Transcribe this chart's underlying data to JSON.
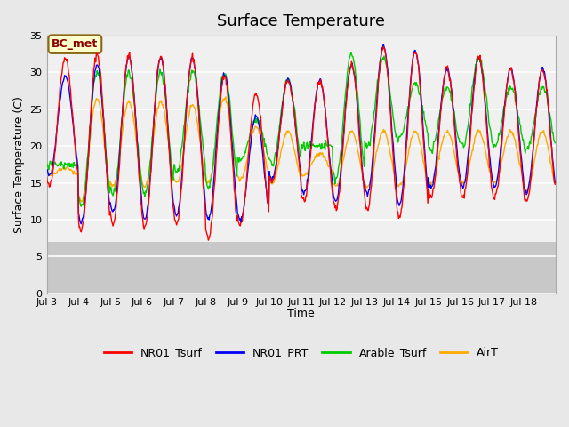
{
  "title": "Surface Temperature",
  "ylabel": "Surface Temperature (C)",
  "xlabel": "Time",
  "annotation": "BC_met",
  "ylim": [
    0,
    35
  ],
  "yticks": [
    0,
    5,
    10,
    15,
    20,
    25,
    30,
    35
  ],
  "legend_labels": [
    "NR01_Tsurf",
    "NR01_PRT",
    "Arable_Tsurf",
    "AirT"
  ],
  "line_colors": [
    "#ff0000",
    "#0000ff",
    "#00cc00",
    "#ffaa00"
  ],
  "xtick_labels": [
    "Jul 3",
    "Jul 4",
    "Jul 5",
    "Jul 6",
    "Jul 7",
    "Jul 8",
    "Jul 9",
    "Jul 10",
    "Jul 11",
    "Jul 12",
    "Jul 13",
    "Jul 14",
    "Jul 15",
    "Jul 16",
    "Jul 17",
    "Jul 18"
  ],
  "bg_color": "#e8e8e8",
  "plot_bg_color": "#f0f0f0",
  "grid_color": "#ffffff",
  "annotation_bg": "#ffffcc",
  "annotation_border": "#8B6914",
  "n_days": 16,
  "peak_NR01": [
    32.0,
    32.5,
    32.3,
    32.2,
    32.0,
    29.5,
    27.0,
    28.8,
    28.8,
    31.0,
    33.5,
    32.8,
    30.5,
    32.0,
    30.5,
    30.5
  ],
  "trough_NR01": [
    14.5,
    8.5,
    9.5,
    9.0,
    9.5,
    7.5,
    9.3,
    15.2,
    12.5,
    11.5,
    11.5,
    10.5,
    13.0,
    13.0,
    13.0,
    12.5
  ],
  "peak_PRT": [
    29.5,
    31.0,
    32.0,
    32.0,
    32.0,
    29.8,
    24.0,
    29.0,
    29.0,
    31.0,
    33.5,
    33.0,
    30.5,
    32.0,
    30.5,
    30.5
  ],
  "trough_PRT": [
    16.0,
    9.5,
    11.0,
    10.0,
    10.5,
    10.0,
    10.0,
    15.5,
    13.5,
    12.5,
    13.5,
    12.0,
    14.5,
    14.5,
    14.5,
    13.5
  ],
  "peak_Arable": [
    17.5,
    30.0,
    30.0,
    30.0,
    30.0,
    30.0,
    23.5,
    29.0,
    20.0,
    32.5,
    32.0,
    28.5,
    28.0,
    32.0,
    28.0,
    28.0
  ],
  "trough_Arable": [
    17.5,
    12.0,
    13.5,
    13.5,
    16.5,
    14.5,
    18.0,
    17.5,
    20.0,
    15.5,
    20.0,
    21.0,
    19.5,
    20.0,
    20.0,
    19.5
  ],
  "peak_AirT": [
    17.0,
    26.5,
    26.0,
    26.0,
    25.5,
    26.5,
    22.5,
    22.0,
    19.0,
    22.0,
    22.0,
    22.0,
    22.0,
    22.0,
    22.0,
    22.0
  ],
  "trough_AirT": [
    16.0,
    12.5,
    14.5,
    14.5,
    15.0,
    15.0,
    15.5,
    15.0,
    16.0,
    14.5,
    14.5,
    14.5,
    15.0,
    15.0,
    15.0,
    14.0
  ]
}
